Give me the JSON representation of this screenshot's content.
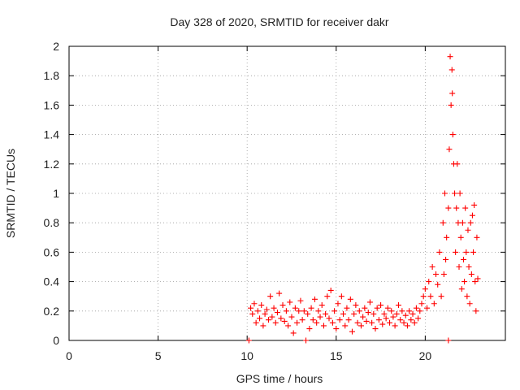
{
  "chart_data": {
    "type": "scatter",
    "title": "Day 328 of 2020, SRMTID for receiver dakr",
    "xlabel": "GPS time / hours",
    "ylabel": "SRMTID / TECUs",
    "xlim": [
      0,
      24.5
    ],
    "ylim": [
      0,
      2
    ],
    "x_ticks": [
      0,
      5,
      10,
      15,
      20
    ],
    "x_tick_labels": [
      "0",
      "5",
      "10",
      "15",
      "20"
    ],
    "y_ticks": [
      0,
      0.2,
      0.4,
      0.6,
      0.8,
      1,
      1.2,
      1.4,
      1.6,
      1.8,
      2
    ],
    "y_tick_labels": [
      "0",
      "0.2",
      "0.4",
      "0.6",
      "0.8",
      "1",
      "1.2",
      "1.4",
      "1.6",
      "1.8",
      "2"
    ],
    "grid": true,
    "marker": "plus",
    "color": "#ff0000",
    "series": [
      {
        "name": "SRMTID",
        "points": [
          [
            10.1,
            0.0
          ],
          [
            13.3,
            0.0
          ],
          [
            21.3,
            0.0
          ],
          [
            10.2,
            0.22
          ],
          [
            10.3,
            0.18
          ],
          [
            10.4,
            0.25
          ],
          [
            10.5,
            0.12
          ],
          [
            10.6,
            0.2
          ],
          [
            10.7,
            0.15
          ],
          [
            10.8,
            0.24
          ],
          [
            10.9,
            0.1
          ],
          [
            11.0,
            0.18
          ],
          [
            11.1,
            0.21
          ],
          [
            11.2,
            0.14
          ],
          [
            11.3,
            0.3
          ],
          [
            11.4,
            0.16
          ],
          [
            11.5,
            0.22
          ],
          [
            11.6,
            0.12
          ],
          [
            11.7,
            0.19
          ],
          [
            11.8,
            0.32
          ],
          [
            11.9,
            0.15
          ],
          [
            12.0,
            0.24
          ],
          [
            12.1,
            0.13
          ],
          [
            12.2,
            0.2
          ],
          [
            12.3,
            0.1
          ],
          [
            12.4,
            0.26
          ],
          [
            12.5,
            0.16
          ],
          [
            12.6,
            0.05
          ],
          [
            12.7,
            0.22
          ],
          [
            12.8,
            0.12
          ],
          [
            12.9,
            0.2
          ],
          [
            13.0,
            0.27
          ],
          [
            13.1,
            0.14
          ],
          [
            13.2,
            0.2
          ],
          [
            13.4,
            0.18
          ],
          [
            13.5,
            0.08
          ],
          [
            13.6,
            0.22
          ],
          [
            13.7,
            0.14
          ],
          [
            13.8,
            0.28
          ],
          [
            13.9,
            0.12
          ],
          [
            14.0,
            0.2
          ],
          [
            14.1,
            0.16
          ],
          [
            14.2,
            0.24
          ],
          [
            14.3,
            0.1
          ],
          [
            14.4,
            0.18
          ],
          [
            14.5,
            0.3
          ],
          [
            14.6,
            0.15
          ],
          [
            14.7,
            0.34
          ],
          [
            14.8,
            0.12
          ],
          [
            14.9,
            0.2
          ],
          [
            15.0,
            0.08
          ],
          [
            15.1,
            0.25
          ],
          [
            15.2,
            0.14
          ],
          [
            15.3,
            0.3
          ],
          [
            15.4,
            0.18
          ],
          [
            15.5,
            0.1
          ],
          [
            15.6,
            0.22
          ],
          [
            15.7,
            0.14
          ],
          [
            15.8,
            0.28
          ],
          [
            15.9,
            0.06
          ],
          [
            16.0,
            0.18
          ],
          [
            16.1,
            0.24
          ],
          [
            16.2,
            0.12
          ],
          [
            16.3,
            0.2
          ],
          [
            16.4,
            0.1
          ],
          [
            16.5,
            0.16
          ],
          [
            16.6,
            0.22
          ],
          [
            16.7,
            0.13
          ],
          [
            16.8,
            0.19
          ],
          [
            16.9,
            0.26
          ],
          [
            17.0,
            0.12
          ],
          [
            17.1,
            0.18
          ],
          [
            17.2,
            0.08
          ],
          [
            17.3,
            0.22
          ],
          [
            17.4,
            0.14
          ],
          [
            17.5,
            0.24
          ],
          [
            17.6,
            0.11
          ],
          [
            17.7,
            0.18
          ],
          [
            17.8,
            0.15
          ],
          [
            17.9,
            0.22
          ],
          [
            18.0,
            0.12
          ],
          [
            18.1,
            0.2
          ],
          [
            18.2,
            0.16
          ],
          [
            18.3,
            0.1
          ],
          [
            18.4,
            0.18
          ],
          [
            18.5,
            0.24
          ],
          [
            18.6,
            0.14
          ],
          [
            18.7,
            0.2
          ],
          [
            18.8,
            0.12
          ],
          [
            18.9,
            0.17
          ],
          [
            19.0,
            0.1
          ],
          [
            19.1,
            0.2
          ],
          [
            19.2,
            0.14
          ],
          [
            19.3,
            0.18
          ],
          [
            19.4,
            0.12
          ],
          [
            19.5,
            0.22
          ],
          [
            19.6,
            0.15
          ],
          [
            19.7,
            0.2
          ],
          [
            19.8,
            0.25
          ],
          [
            19.9,
            0.3
          ],
          [
            20.0,
            0.35
          ],
          [
            20.1,
            0.22
          ],
          [
            20.2,
            0.4
          ],
          [
            20.3,
            0.3
          ],
          [
            20.4,
            0.5
          ],
          [
            20.5,
            0.25
          ],
          [
            20.6,
            0.45
          ],
          [
            20.7,
            0.38
          ],
          [
            20.8,
            0.6
          ],
          [
            20.9,
            0.3
          ],
          [
            21.0,
            0.8
          ],
          [
            21.05,
            0.45
          ],
          [
            21.1,
            1.0
          ],
          [
            21.15,
            0.55
          ],
          [
            21.2,
            0.7
          ],
          [
            21.3,
            0.9
          ],
          [
            21.35,
            1.3
          ],
          [
            21.4,
            1.93
          ],
          [
            21.45,
            1.6
          ],
          [
            21.5,
            1.84
          ],
          [
            21.52,
            1.68
          ],
          [
            21.55,
            1.4
          ],
          [
            21.6,
            1.2
          ],
          [
            21.65,
            1.0
          ],
          [
            21.7,
            0.6
          ],
          [
            21.75,
            0.9
          ],
          [
            21.8,
            1.2
          ],
          [
            21.85,
            0.8
          ],
          [
            21.9,
            0.5
          ],
          [
            21.95,
            1.0
          ],
          [
            22.0,
            0.7
          ],
          [
            22.05,
            0.35
          ],
          [
            22.1,
            0.8
          ],
          [
            22.15,
            0.55
          ],
          [
            22.2,
            0.4
          ],
          [
            22.25,
            0.9
          ],
          [
            22.3,
            0.6
          ],
          [
            22.35,
            0.3
          ],
          [
            22.4,
            0.75
          ],
          [
            22.45,
            0.5
          ],
          [
            22.5,
            0.25
          ],
          [
            22.55,
            0.8
          ],
          [
            22.6,
            0.45
          ],
          [
            22.65,
            0.85
          ],
          [
            22.7,
            0.6
          ],
          [
            22.75,
            0.92
          ],
          [
            22.8,
            0.4
          ],
          [
            22.85,
            0.2
          ],
          [
            22.9,
            0.7
          ],
          [
            22.95,
            0.42
          ]
        ]
      }
    ]
  }
}
